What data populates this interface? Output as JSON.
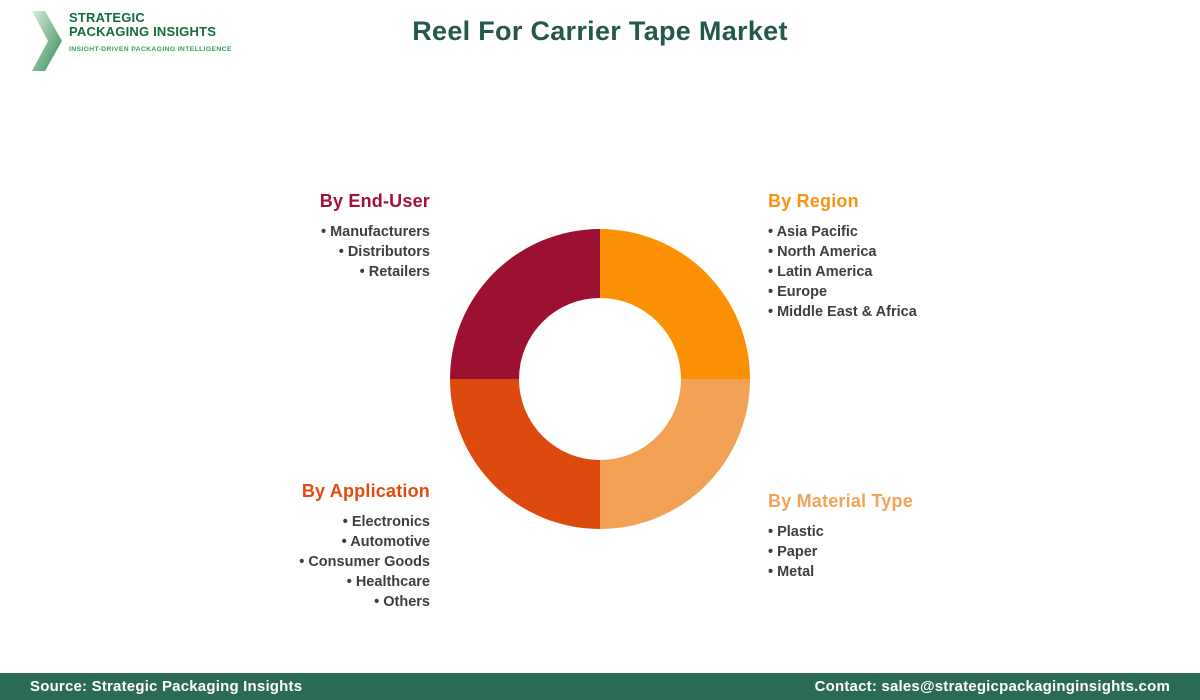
{
  "header": {
    "title": "Reel For Carrier Tape Market",
    "logo": {
      "line1": "STRATEGIC",
      "line2": "PACKAGING INSIGHTS",
      "tagline": "INSIGHT-DRIVEN PACKAGING INTELLIGENCE"
    }
  },
  "sections": {
    "end_user": {
      "heading": "By End-User",
      "color": "#A11235",
      "items": [
        "Manufacturers",
        "Distributors",
        "Retailers"
      ]
    },
    "region": {
      "heading": "By Region",
      "color": "#F89316",
      "items": [
        "Asia Pacific",
        "North America",
        "Latin America",
        "Europe",
        "Middle East & Africa"
      ]
    },
    "application": {
      "heading": "By Application",
      "color": "#E6490D",
      "items": [
        "Electronics",
        "Automotive",
        "Consumer Goods",
        "Healthcare",
        "Others"
      ]
    },
    "material": {
      "heading": "By Material Type",
      "color": "#F2A355",
      "items": [
        "Plastic",
        "Paper",
        "Metal"
      ]
    }
  },
  "chart_data": {
    "type": "pie",
    "subtype": "donut",
    "title": "Reel For Carrier Tape Market",
    "start_angle_deg": 0,
    "direction": "clockwise",
    "inner_radius_ratio": 0.54,
    "slices": [
      {
        "label": "By Region",
        "value": 25,
        "color": "#FB9004"
      },
      {
        "label": "By Material Type",
        "value": 25,
        "color": "#F2A155"
      },
      {
        "label": "By Application",
        "value": 25,
        "color": "#DC4A0E"
      },
      {
        "label": "By End-User",
        "value": 25,
        "color": "#9C1132"
      }
    ]
  },
  "footer": {
    "source": "Source: Strategic Packaging Insights",
    "contact": "Contact: sales@strategicpackaginginsights.com",
    "background": "#2B6A57"
  }
}
